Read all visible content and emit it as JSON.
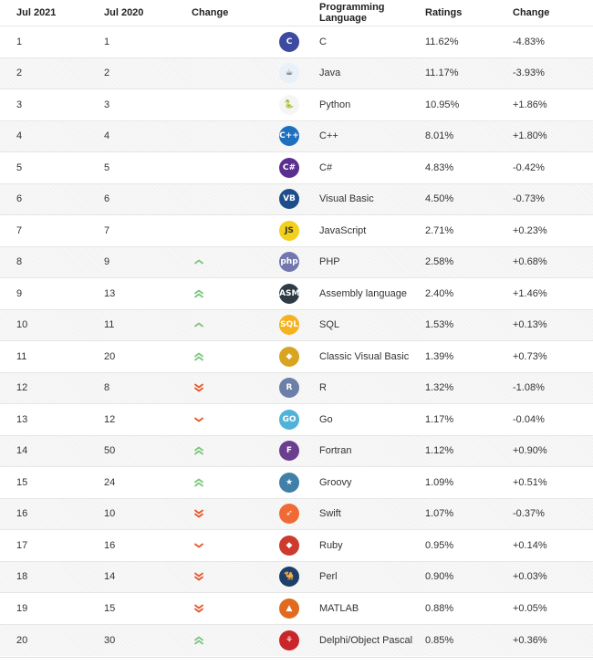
{
  "headers": [
    "Jul 2021",
    "Jul 2020",
    "Change",
    "Programming Language",
    "Ratings",
    "Change"
  ],
  "colors": {
    "up": "#7dc57d",
    "down": "#e5562a"
  },
  "rows": [
    {
      "rank": "1",
      "prev": "1",
      "trend": "none",
      "icon": "c-icon",
      "icon_text": "C",
      "icon_color": "#3d4aa0",
      "language": "C",
      "rating": "11.62%",
      "change": "-4.83%"
    },
    {
      "rank": "2",
      "prev": "2",
      "trend": "none",
      "icon": "java-icon",
      "icon_text": "☕",
      "icon_color": "#e8f0f8",
      "language": "Java",
      "rating": "11.17%",
      "change": "-3.93%"
    },
    {
      "rank": "3",
      "prev": "3",
      "trend": "none",
      "icon": "python-icon",
      "icon_text": "🐍",
      "icon_color": "#f5f5f5",
      "language": "Python",
      "rating": "10.95%",
      "change": "+1.86%"
    },
    {
      "rank": "4",
      "prev": "4",
      "trend": "none",
      "icon": "cpp-icon",
      "icon_text": "C++",
      "icon_color": "#1f6fbf",
      "language": "C++",
      "rating": "8.01%",
      "change": "+1.80%"
    },
    {
      "rank": "5",
      "prev": "5",
      "trend": "none",
      "icon": "csharp-icon",
      "icon_text": "C#",
      "icon_color": "#5b2f8f",
      "language": "C#",
      "rating": "4.83%",
      "change": "-0.42%"
    },
    {
      "rank": "6",
      "prev": "6",
      "trend": "none",
      "icon": "visual-basic-icon",
      "icon_text": "VB",
      "icon_color": "#1f4d8c",
      "language": "Visual Basic",
      "rating": "4.50%",
      "change": "-0.73%"
    },
    {
      "rank": "7",
      "prev": "7",
      "trend": "none",
      "icon": "javascript-icon",
      "icon_text": "JS",
      "icon_color": "#f2d01c",
      "language": "JavaScript",
      "rating": "2.71%",
      "change": "+0.23%"
    },
    {
      "rank": "8",
      "prev": "9",
      "trend": "up",
      "icon": "php-icon",
      "icon_text": "php",
      "icon_color": "#7377ad",
      "language": "PHP",
      "rating": "2.58%",
      "change": "+0.68%"
    },
    {
      "rank": "9",
      "prev": "13",
      "trend": "upup",
      "icon": "assembly-icon",
      "icon_text": "ASM",
      "icon_color": "#2e3a44",
      "language": "Assembly language",
      "rating": "2.40%",
      "change": "+1.46%"
    },
    {
      "rank": "10",
      "prev": "11",
      "trend": "up",
      "icon": "sql-icon",
      "icon_text": "SQL",
      "icon_color": "#f5b21c",
      "language": "SQL",
      "rating": "1.53%",
      "change": "+0.13%"
    },
    {
      "rank": "11",
      "prev": "20",
      "trend": "upup",
      "icon": "classic-visual-basic-icon",
      "icon_text": "◆",
      "icon_color": "#d9a41f",
      "language": "Classic Visual Basic",
      "rating": "1.39%",
      "change": "+0.73%"
    },
    {
      "rank": "12",
      "prev": "8",
      "trend": "downdown",
      "icon": "r-icon",
      "icon_text": "R",
      "icon_color": "#6b7fa8",
      "language": "R",
      "rating": "1.32%",
      "change": "-1.08%"
    },
    {
      "rank": "13",
      "prev": "12",
      "trend": "down",
      "icon": "go-icon",
      "icon_text": "GO",
      "icon_color": "#4fb3d9",
      "language": "Go",
      "rating": "1.17%",
      "change": "-0.04%"
    },
    {
      "rank": "14",
      "prev": "50",
      "trend": "upup",
      "icon": "fortran-icon",
      "icon_text": "F",
      "icon_color": "#6b3f8f",
      "language": "Fortran",
      "rating": "1.12%",
      "change": "+0.90%"
    },
    {
      "rank": "15",
      "prev": "24",
      "trend": "upup",
      "icon": "groovy-icon",
      "icon_text": "★",
      "icon_color": "#3f7fa8",
      "language": "Groovy",
      "rating": "1.09%",
      "change": "+0.51%"
    },
    {
      "rank": "16",
      "prev": "10",
      "trend": "downdown",
      "icon": "swift-icon",
      "icon_text": "➶",
      "icon_color": "#f06a35",
      "language": "Swift",
      "rating": "1.07%",
      "change": "-0.37%"
    },
    {
      "rank": "17",
      "prev": "16",
      "trend": "down",
      "icon": "ruby-icon",
      "icon_text": "◆",
      "icon_color": "#cc3b2e",
      "language": "Ruby",
      "rating": "0.95%",
      "change": "+0.14%"
    },
    {
      "rank": "18",
      "prev": "14",
      "trend": "downdown",
      "icon": "perl-icon",
      "icon_text": "🐪",
      "icon_color": "#1f3f6b",
      "language": "Perl",
      "rating": "0.90%",
      "change": "+0.03%"
    },
    {
      "rank": "19",
      "prev": "15",
      "trend": "downdown",
      "icon": "matlab-icon",
      "icon_text": "▲",
      "icon_color": "#e06b1f",
      "language": "MATLAB",
      "rating": "0.88%",
      "change": "+0.05%"
    },
    {
      "rank": "20",
      "prev": "30",
      "trend": "upup",
      "icon": "delphi-icon",
      "icon_text": "⚘",
      "icon_color": "#c8262a",
      "language": "Delphi/Object Pascal",
      "rating": "0.85%",
      "change": "+0.36%"
    }
  ]
}
